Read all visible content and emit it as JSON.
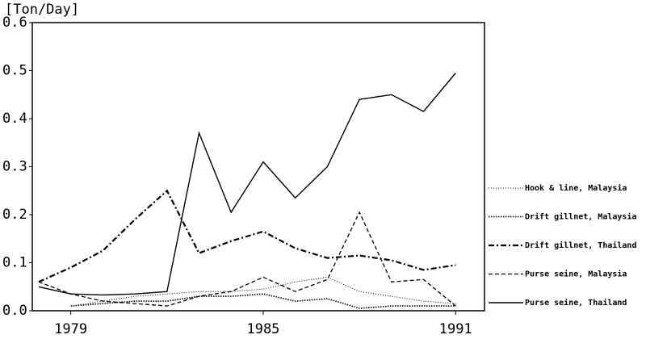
{
  "chart_data": {
    "type": "line",
    "y_label": "[Ton/Day]",
    "x": [
      1978,
      1979,
      1980,
      1981,
      1982,
      1983,
      1984,
      1985,
      1986,
      1987,
      1988,
      1989,
      1990,
      1991
    ],
    "xlim": [
      1977.8,
      1991.9
    ],
    "xticks": [
      1979,
      1985,
      1991
    ],
    "ylim": [
      0,
      0.6
    ],
    "yticks": [
      {
        "value": 0,
        "label": "0.0"
      },
      0.1,
      0.2,
      0.3,
      0.4,
      0.5,
      0.6
    ],
    "series": [
      {
        "name": "Hook & line, Malaysia",
        "color": "#000000",
        "values": [
          null,
          0.01,
          0.02,
          0.03,
          0.035,
          0.04,
          0.04,
          0.045,
          0.06,
          0.07,
          0.04,
          0.03,
          0.02,
          0.015
        ]
      },
      {
        "name": "Drift gillnet, Malaysia",
        "color": "#000000",
        "values": [
          null,
          0.01,
          0.015,
          0.02,
          0.02,
          0.03,
          0.03,
          0.035,
          0.02,
          0.025,
          0.005,
          0.01,
          0.01,
          0.01
        ]
      },
      {
        "name": "Drift gillnet, Thailand",
        "color": "#000000",
        "values": [
          0.06,
          0.09,
          0.125,
          0.19,
          0.25,
          0.12,
          0.145,
          0.165,
          0.13,
          0.11,
          0.115,
          0.105,
          0.085,
          0.095
        ]
      },
      {
        "name": "Purse seine, Malaysia",
        "color": "#000000",
        "values": [
          0.06,
          0.035,
          0.02,
          0.015,
          0.01,
          0.03,
          0.04,
          0.07,
          0.04,
          0.065,
          0.205,
          0.06,
          0.065,
          0.01
        ]
      },
      {
        "name": "Purse seine, Thailand",
        "color": "#000000",
        "values": [
          0.05,
          0.035,
          0.033,
          0.035,
          0.04,
          0.37,
          0.205,
          0.31,
          0.235,
          0.3,
          0.44,
          0.45,
          0.415,
          0.495
        ]
      }
    ]
  }
}
